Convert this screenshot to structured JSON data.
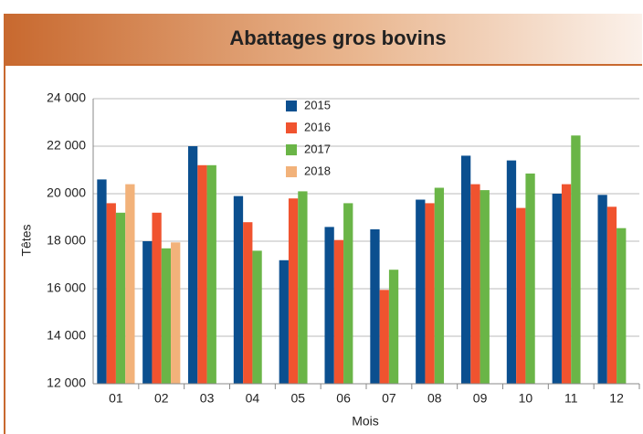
{
  "chart_data": {
    "type": "bar",
    "title": "Abattages gros bovins",
    "x_label": "Mois",
    "y_label": "Têtes",
    "categories": [
      "01",
      "02",
      "03",
      "04",
      "05",
      "06",
      "07",
      "08",
      "09",
      "10",
      "11",
      "12"
    ],
    "series": [
      {
        "name": "2015",
        "color": "#0b4f8f",
        "values": [
          20600,
          18000,
          22000,
          19900,
          17200,
          18600,
          18500,
          19750,
          21600,
          21400,
          20000,
          19950
        ]
      },
      {
        "name": "2016",
        "color": "#f0532f",
        "values": [
          19600,
          19200,
          21200,
          18800,
          19800,
          18050,
          15950,
          19600,
          20400,
          19400,
          20400,
          19450
        ]
      },
      {
        "name": "2017",
        "color": "#6ab547",
        "values": [
          19200,
          17700,
          21200,
          17600,
          20100,
          19600,
          16800,
          20250,
          20150,
          20850,
          22450,
          18550
        ]
      },
      {
        "name": "2018",
        "color": "#f2b27a",
        "values": [
          20400,
          17950,
          null,
          null,
          null,
          null,
          null,
          null,
          null,
          null,
          null,
          null
        ]
      }
    ],
    "ylim": [
      12000,
      24000
    ],
    "yticks": [
      {
        "value": 12000,
        "label": "12 000"
      },
      {
        "value": 14000,
        "label": "14 000"
      },
      {
        "value": 16000,
        "label": "16 000"
      },
      {
        "value": 18000,
        "label": "18 000"
      },
      {
        "value": 20000,
        "label": "20 000"
      },
      {
        "value": 22000,
        "label": "22 000"
      },
      {
        "value": 24000,
        "label": "24 000"
      }
    ],
    "grid": true
  }
}
